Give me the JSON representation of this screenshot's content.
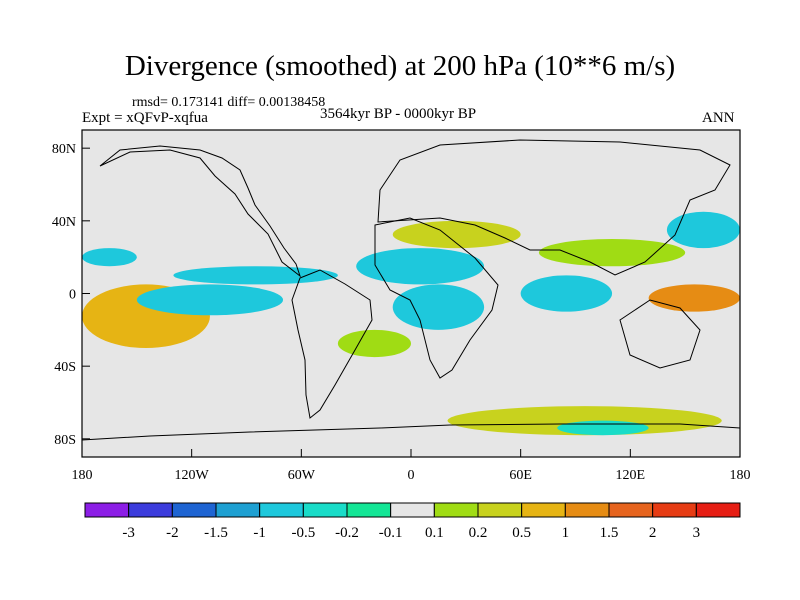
{
  "chart_data": {
    "type": "heatmap",
    "title": "Divergence (smoothed) at 200 hPa (10**6 m/s)",
    "stats_line": "rmsd= 0.173141 diff= 0.00138458",
    "experiment": "Expt = xQFvP-xqfua",
    "period": "3564kyr BP - 0000kyr BP",
    "season": "ANN",
    "x_axis": {
      "range": [
        -180,
        180
      ],
      "ticks": [
        -180,
        -120,
        -60,
        0,
        60,
        120,
        180
      ],
      "tick_labels": [
        "180",
        "120W",
        "60W",
        "0",
        "60E",
        "120E",
        "180"
      ]
    },
    "y_axis": {
      "range": [
        -90,
        90
      ],
      "ticks": [
        80,
        40,
        0,
        -40,
        -80
      ],
      "tick_labels": [
        "80N",
        "40N",
        "0",
        "40S",
        "80S"
      ]
    },
    "colorbar": {
      "labels": [
        "-3",
        "-2",
        "-1.5",
        "-1",
        "-0.5",
        "-0.2",
        "-0.1",
        "0.1",
        "0.2",
        "0.5",
        "1",
        "1.5",
        "2",
        "3"
      ],
      "colors": [
        "#8c1ee6",
        "#3c3cdc",
        "#1e64d2",
        "#1ea0d2",
        "#1ec8dc",
        "#19dcc8",
        "#14e696",
        "#e6e6e6",
        "#a0dc14",
        "#c8d21e",
        "#e6b414",
        "#e68c14",
        "#e6641e",
        "#e63c14",
        "#e61e14"
      ]
    },
    "regions": [
      {
        "name": "tropical-pacific-west-positive",
        "lon": [
          -180,
          -110
        ],
        "lat": [
          -30,
          5
        ],
        "level": 1
      },
      {
        "name": "pacific-east-band-negative",
        "lon": [
          -150,
          -70
        ],
        "lat": [
          -12,
          5
        ],
        "level": -0.5
      },
      {
        "name": "north-pacific-negative",
        "lon": [
          -180,
          -150
        ],
        "lat": [
          15,
          25
        ],
        "level": -0.5
      },
      {
        "name": "central-pacific-north-negative",
        "lon": [
          -130,
          -40
        ],
        "lat": [
          5,
          15
        ],
        "level": -0.5
      },
      {
        "name": "atlantic-north-negative",
        "lon": [
          -30,
          40
        ],
        "lat": [
          5,
          25
        ],
        "level": -0.5
      },
      {
        "name": "africa-equatorial-negative",
        "lon": [
          -10,
          40
        ],
        "lat": [
          -20,
          5
        ],
        "level": -0.5
      },
      {
        "name": "mediterranean-positive",
        "lon": [
          -10,
          60
        ],
        "lat": [
          25,
          40
        ],
        "level": 0.5
      },
      {
        "name": "south-atlantic-positive",
        "lon": [
          -40,
          0
        ],
        "lat": [
          -35,
          -20
        ],
        "level": 0.2
      },
      {
        "name": "indian-ocean-negative",
        "lon": [
          60,
          110
        ],
        "lat": [
          -10,
          10
        ],
        "level": -0.5
      },
      {
        "name": "asia-monsoon-positive",
        "lon": [
          70,
          150
        ],
        "lat": [
          15,
          30
        ],
        "level": 0.2
      },
      {
        "name": "west-pacific-equatorial-positive",
        "lon": [
          130,
          180
        ],
        "lat": [
          -10,
          5
        ],
        "level": 1.5
      },
      {
        "name": "north-west-pacific-negative",
        "lon": [
          140,
          180
        ],
        "lat": [
          25,
          45
        ],
        "level": -0.5
      },
      {
        "name": "southern-ocean-positive",
        "lon": [
          20,
          170
        ],
        "lat": [
          -78,
          -62
        ],
        "level": 0.5
      },
      {
        "name": "antarctic-negative",
        "lon": [
          80,
          130
        ],
        "lat": [
          -78,
          -70
        ],
        "level": -0.2
      }
    ]
  }
}
